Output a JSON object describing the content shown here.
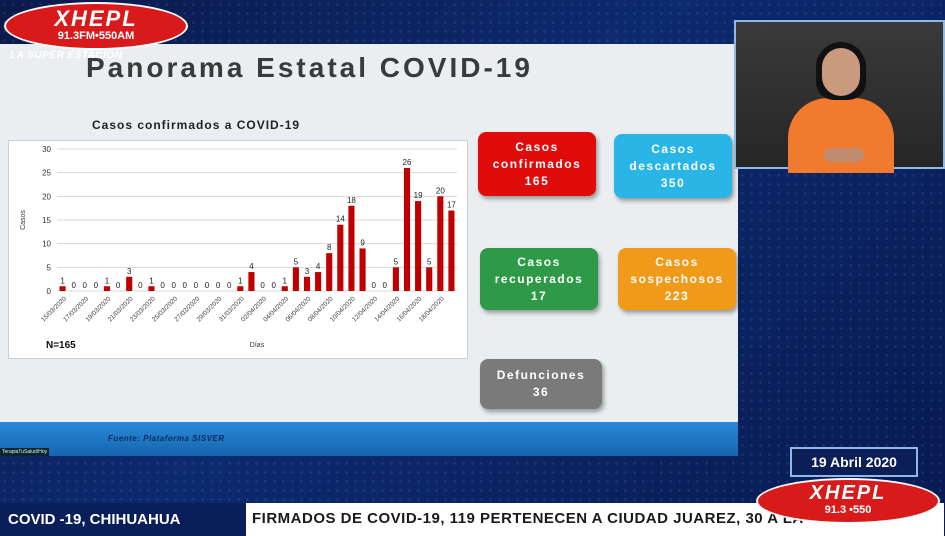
{
  "station": {
    "name": "XHEPL",
    "frequency": "91.3FM•550AM",
    "tagline": "LA SUPER ESTACION",
    "name_bottom": "XHEPL",
    "frequency_bottom": "91.3 •550"
  },
  "slide": {
    "title": "Panorama Estatal COVID-19",
    "chart_title": "Casos confirmados a COVID-19",
    "n_label": "N=165",
    "source": "Fuente: Plataforma SISVER",
    "corner_tag": "TerapiaTuSalud/Hoy"
  },
  "cards": {
    "confirmados": {
      "label1": "Casos",
      "label2": "confirmados",
      "value": "165"
    },
    "descartados": {
      "label1": "Casos",
      "label2": "descartados",
      "value": "350"
    },
    "recuperados": {
      "label1": "Casos",
      "label2": "recuperados",
      "value": "17"
    },
    "sospechosos": {
      "label1": "Casos",
      "label2": "sospechosos",
      "value": "223"
    },
    "defunciones": {
      "label1": "Defunciones",
      "value": "36"
    }
  },
  "date": "19 Abril 2020",
  "ticker": {
    "label": "COVID -19, CHIHUAHUA",
    "text": "FIRMADOS DE COVID-19, 119 PERTENECEN A CIUDAD JUAREZ, 30 A LA"
  },
  "colors": {
    "confirmados": "#e00b0b",
    "descartados": "#29b6e6",
    "recuperados": "#2e9a47",
    "sospechosos": "#f19a1a",
    "defunciones": "#7a7a7a",
    "bar": "#c00000"
  },
  "chart_data": {
    "type": "bar",
    "title": "Casos confirmados a COVID-19",
    "xlabel": "Días",
    "ylabel": "Casos",
    "ylim": [
      0,
      30
    ],
    "yticks": [
      0,
      5,
      10,
      15,
      20,
      25,
      30
    ],
    "grid": true,
    "tick_labels": [
      "15/03/2020",
      "17/03/2020",
      "19/03/2020",
      "21/03/2020",
      "23/03/2020",
      "25/03/2020",
      "27/03/2020",
      "29/03/2020",
      "31/03/2020",
      "02/04/2020",
      "04/04/2020",
      "06/04/2020",
      "08/04/2020",
      "10/04/2020",
      "12/04/2020",
      "14/04/2020",
      "16/04/2020",
      "18/04/2020"
    ],
    "values": [
      1,
      0,
      0,
      0,
      1,
      0,
      3,
      0,
      1,
      0,
      0,
      0,
      0,
      0,
      0,
      0,
      1,
      4,
      0,
      0,
      1,
      5,
      3,
      4,
      8,
      14,
      18,
      9,
      0,
      0,
      5,
      26,
      19,
      5,
      20,
      17
    ]
  }
}
